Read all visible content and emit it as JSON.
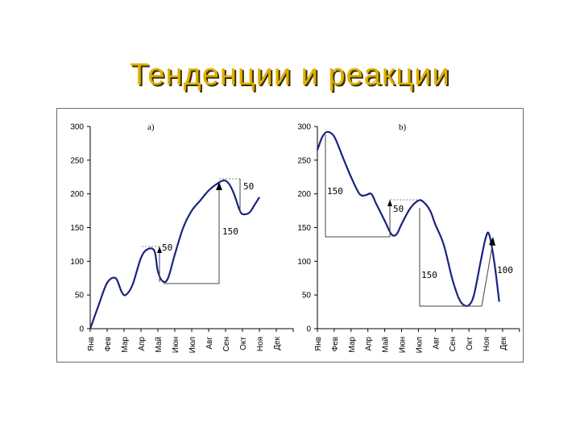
{
  "slide": {
    "title": "Тенденции и реакции"
  },
  "chart_data": [
    {
      "type": "line",
      "panel_label": "a)",
      "categories": [
        "Янв",
        "Фев",
        "Мар",
        "Апр",
        "Май",
        "Июн",
        "Июл",
        "Авг",
        "Сен",
        "Окт",
        "Ноя",
        "Дек"
      ],
      "ylim": [
        0,
        300
      ],
      "yticks": [
        0,
        50,
        100,
        150,
        200,
        250,
        300
      ],
      "grid": false,
      "series": [
        {
          "color": "#1a237e",
          "x": [
            0,
            0.5,
            1,
            1.5,
            1.85,
            2.1,
            2.5,
            3,
            3.4,
            3.8,
            4,
            4.3,
            4.6,
            5,
            5.5,
            6,
            6.5,
            7,
            7.5,
            7.9,
            8.2,
            8.5,
            8.8,
            9,
            9.4,
            9.7,
            10
          ],
          "y": [
            0,
            35,
            68,
            75,
            55,
            50,
            65,
            105,
            118,
            115,
            85,
            70,
            75,
            110,
            150,
            175,
            190,
            205,
            215,
            220,
            215,
            200,
            178,
            170,
            172,
            183,
            195
          ]
        }
      ],
      "annotations": [
        {
          "text": "50",
          "target": "rise Май–Июн"
        },
        {
          "text": "150",
          "target": "rise Июн–Сен"
        },
        {
          "text": "50",
          "target": "drop Сен–Окт"
        }
      ]
    },
    {
      "type": "line",
      "panel_label": "b)",
      "categories": [
        "Янв",
        "Фев",
        "Мар",
        "Апр",
        "Май",
        "Июн",
        "Июл",
        "Авг",
        "Сен",
        "Окт",
        "Ноя",
        "Дек"
      ],
      "ylim": [
        0,
        300
      ],
      "yticks": [
        0,
        50,
        100,
        150,
        200,
        250,
        300
      ],
      "grid": false,
      "series": [
        {
          "color": "#1a237e",
          "x": [
            0,
            0.3,
            0.6,
            1,
            1.5,
            2,
            2.5,
            2.85,
            3.2,
            3.5,
            4,
            4.4,
            4.7,
            5,
            5.5,
            6,
            6.3,
            6.7,
            7,
            7.5,
            8,
            8.4,
            8.7,
            9,
            9.3,
            9.7,
            10,
            10.2,
            10.5,
            10.8
          ],
          "y": [
            265,
            285,
            292,
            285,
            255,
            225,
            200,
            198,
            200,
            185,
            160,
            140,
            140,
            155,
            178,
            190,
            188,
            175,
            155,
            125,
            75,
            45,
            35,
            35,
            50,
            100,
            135,
            140,
            100,
            40
          ]
        }
      ],
      "annotations": [
        {
          "text": "150",
          "target": "drop Янв–Май"
        },
        {
          "text": "50",
          "target": "rise Май–Июл"
        },
        {
          "text": "150",
          "target": "drop Июл–Окт"
        },
        {
          "text": "100",
          "target": "rise Окт–Ноя"
        }
      ]
    }
  ]
}
